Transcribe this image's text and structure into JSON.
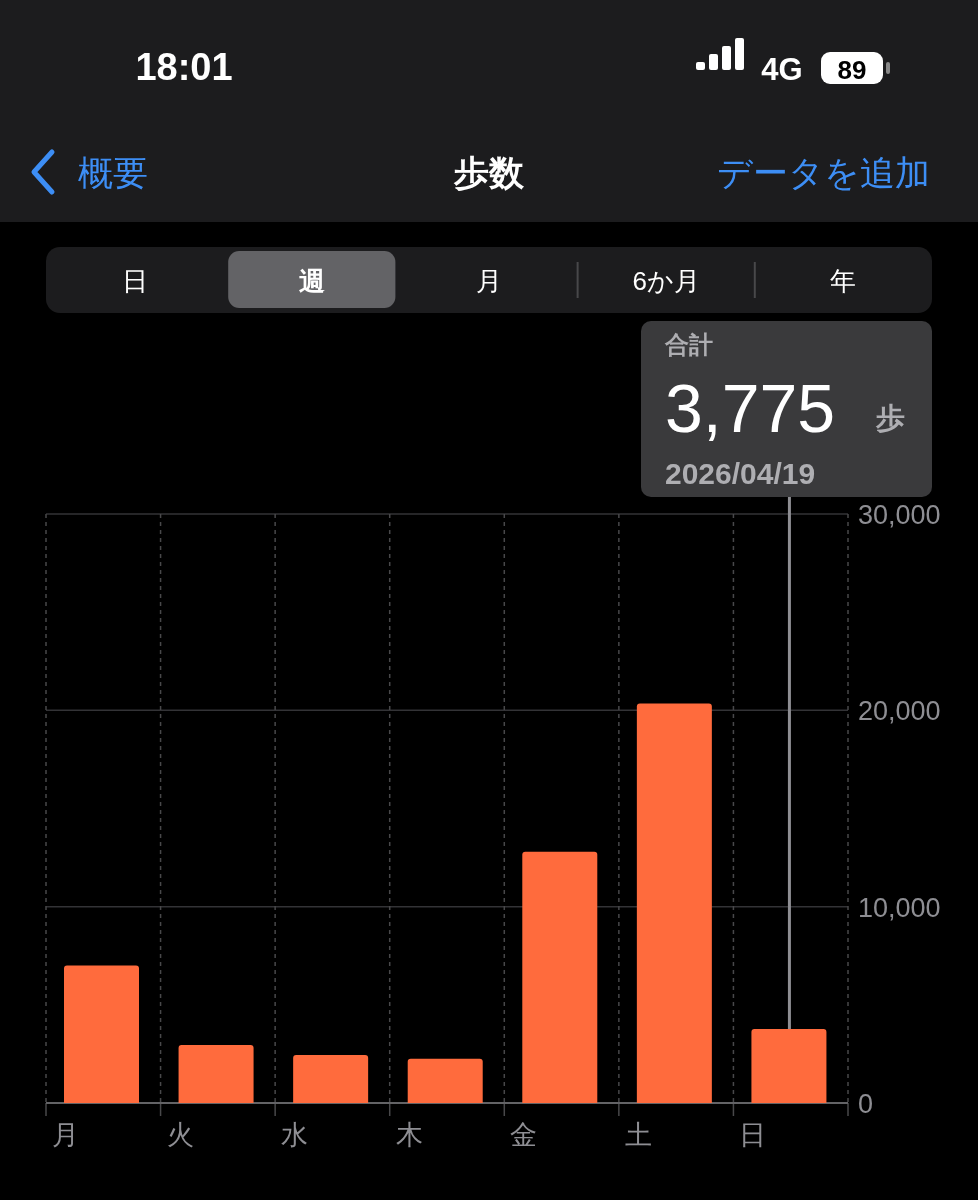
{
  "chart_data": {
    "type": "bar",
    "title": "歩数",
    "categories": [
      "月",
      "火",
      "水",
      "木",
      "金",
      "土",
      "日"
    ],
    "values": [
      7000,
      2950,
      2450,
      2250,
      12800,
      20350,
      3775
    ],
    "color": "#ff6b3d",
    "ylim": [
      0,
      30000
    ],
    "yticks": [
      0,
      {
        "value": 10000,
        "label": "10,000"
      },
      {
        "value": 20000,
        "label": "20,000"
      },
      {
        "value": 30000,
        "label": "30,000"
      }
    ],
    "grid": true,
    "ref_lines": [
      {
        "axis": "x",
        "value": "日",
        "color": "#8e8e93"
      }
    ],
    "annotations": [
      "18:01",
      "4G",
      "89",
      "概要",
      "データを追加",
      "日",
      "週",
      "月",
      "6か月",
      "年",
      "合計",
      "3,775",
      "歩",
      "2026/04/19"
    ]
  }
}
